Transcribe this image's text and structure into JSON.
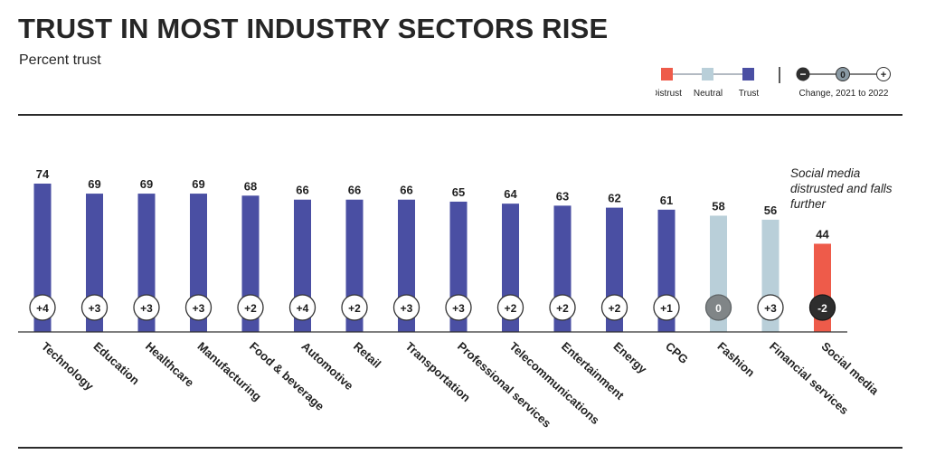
{
  "title": "TRUST IN MOST INDUSTRY SECTORS RISE",
  "subtitle": "Percent trust",
  "legend": {
    "distrust": "Distrust",
    "neutral": "Neutral",
    "trust": "Trust",
    "change_label": "Change, 2021 to 2022",
    "change_symbols": {
      "minus": "−",
      "zero": "0",
      "plus": "+"
    }
  },
  "annotation": "Social media distrusted and falls further",
  "colors": {
    "trust": "#4a4fa3",
    "neutral": "#b9cfd9",
    "distrust": "#ee5b4a",
    "badge_dark": "#2e2e2e",
    "badge_gray": "#808587"
  },
  "chart_data": {
    "type": "bar",
    "categories": [
      "Technology",
      "Education",
      "Healthcare",
      "Manufacturing",
      "Food & beverage",
      "Automotive",
      "Retail",
      "Transportation",
      "Professional services",
      "Telecommunications",
      "Entertainment",
      "Energy",
      "CPG",
      "Fashion",
      "Financial services",
      "Social media"
    ],
    "values": [
      74,
      69,
      69,
      69,
      68,
      66,
      66,
      66,
      65,
      64,
      63,
      62,
      61,
      58,
      56,
      44
    ],
    "trust_level": [
      "trust",
      "trust",
      "trust",
      "trust",
      "trust",
      "trust",
      "trust",
      "trust",
      "trust",
      "trust",
      "trust",
      "trust",
      "trust",
      "neutral",
      "neutral",
      "distrust"
    ],
    "change_2021_to_2022": [
      "+4",
      "+3",
      "+3",
      "+3",
      "+2",
      "+4",
      "+2",
      "+3",
      "+3",
      "+2",
      "+2",
      "+2",
      "+1",
      "0",
      "+3",
      "-2"
    ],
    "ylim": [
      0,
      74
    ]
  }
}
